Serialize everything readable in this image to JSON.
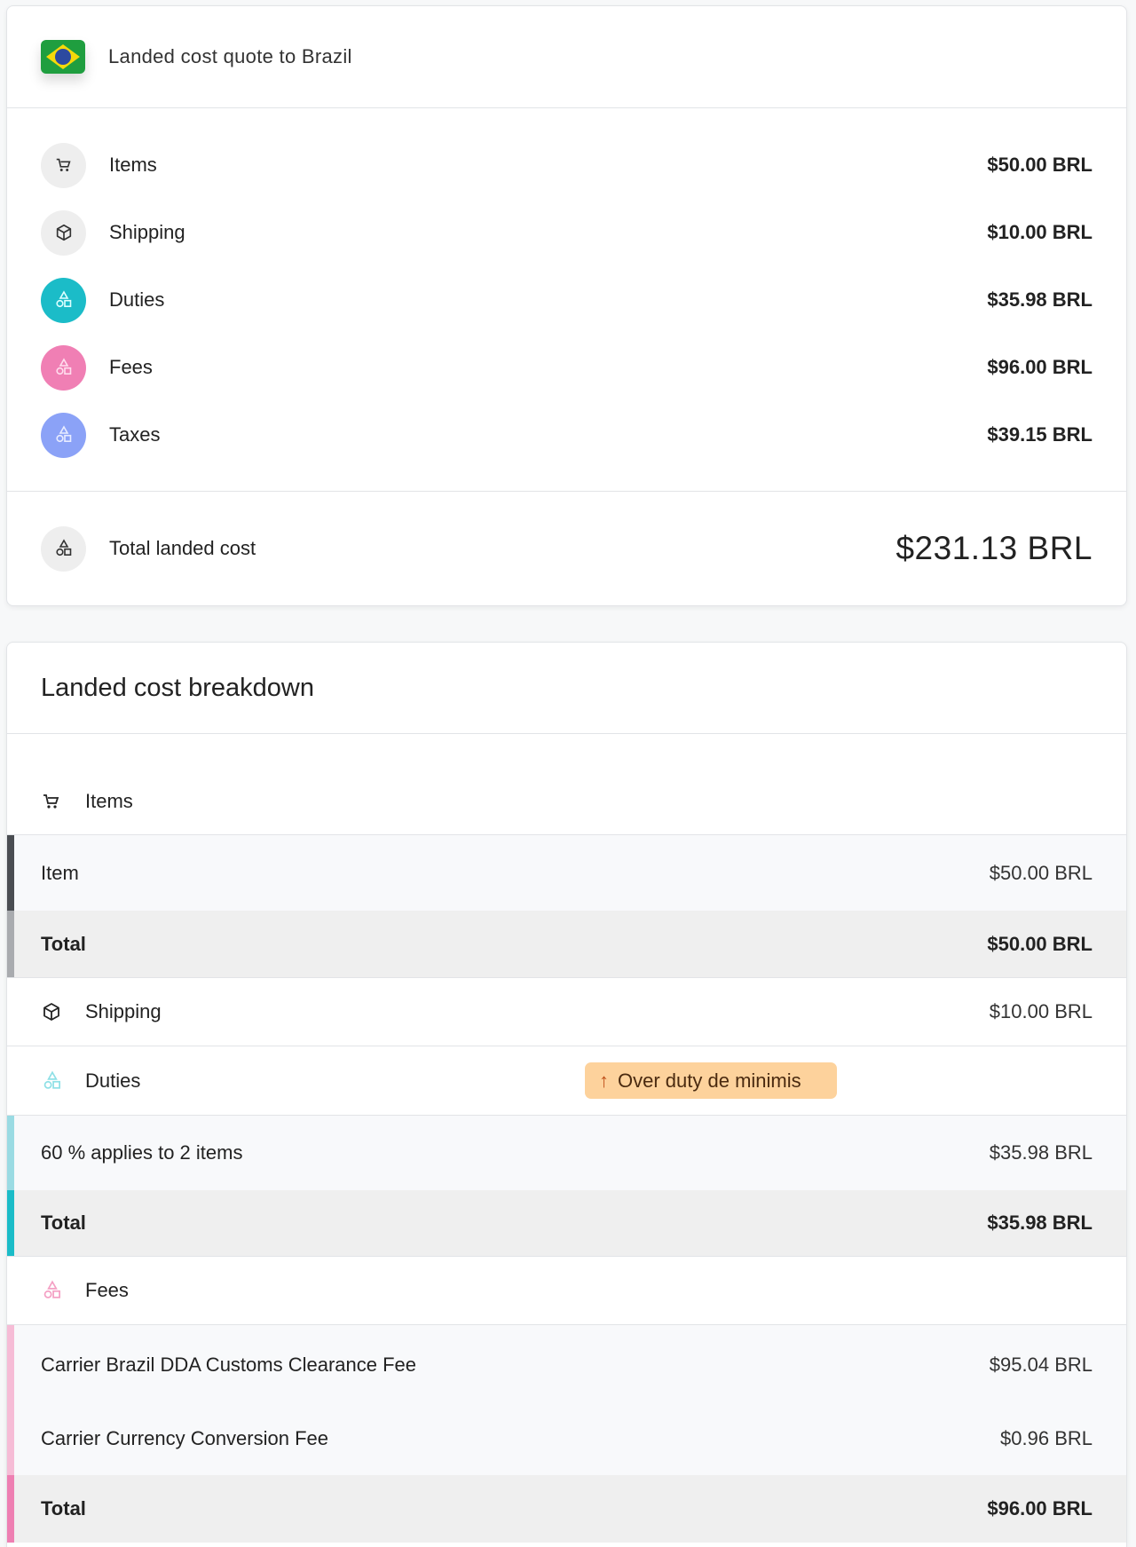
{
  "quote": {
    "title": "Landed cost quote to Brazil",
    "flag": "brazil-flag",
    "rows": [
      {
        "label": "Items",
        "value": "$50.00 BRL",
        "icon": "cart-icon",
        "color": "#eeeeee"
      },
      {
        "label": "Shipping",
        "value": "$10.00 BRL",
        "icon": "box-icon",
        "color": "#eeeeee"
      },
      {
        "label": "Duties",
        "value": "$35.98 BRL",
        "icon": "shapes-icon",
        "color": "#1bbcc8"
      },
      {
        "label": "Fees",
        "value": "$96.00 BRL",
        "icon": "shapes-icon",
        "color": "#f07fb4"
      },
      {
        "label": "Taxes",
        "value": "$39.15 BRL",
        "icon": "shapes-icon",
        "color": "#8ba2f7"
      }
    ],
    "total_label": "Total landed cost",
    "total_value": "$231.13 BRL"
  },
  "breakdown": {
    "title": "Landed cost breakdown",
    "items": {
      "label": "Items",
      "rows": [
        {
          "label": "Item",
          "value": "$50.00 BRL"
        }
      ],
      "total_label": "Total",
      "total_value": "$50.00 BRL"
    },
    "shipping": {
      "label": "Shipping",
      "value": "$10.00 BRL"
    },
    "duties": {
      "label": "Duties",
      "badge": "Over duty de minimis",
      "badge_color": "#fdd29c",
      "rows": [
        {
          "label": "60 % applies to 2 items",
          "value": "$35.98 BRL"
        }
      ],
      "total_label": "Total",
      "total_value": "$35.98 BRL"
    },
    "fees": {
      "label": "Fees",
      "rows": [
        {
          "label": "Carrier Brazil DDA Customs Clearance Fee",
          "value": "$95.04 BRL"
        },
        {
          "label": "Carrier Currency Conversion Fee",
          "value": "$0.96 BRL"
        }
      ],
      "total_label": "Total",
      "total_value": "$96.00 BRL"
    }
  }
}
